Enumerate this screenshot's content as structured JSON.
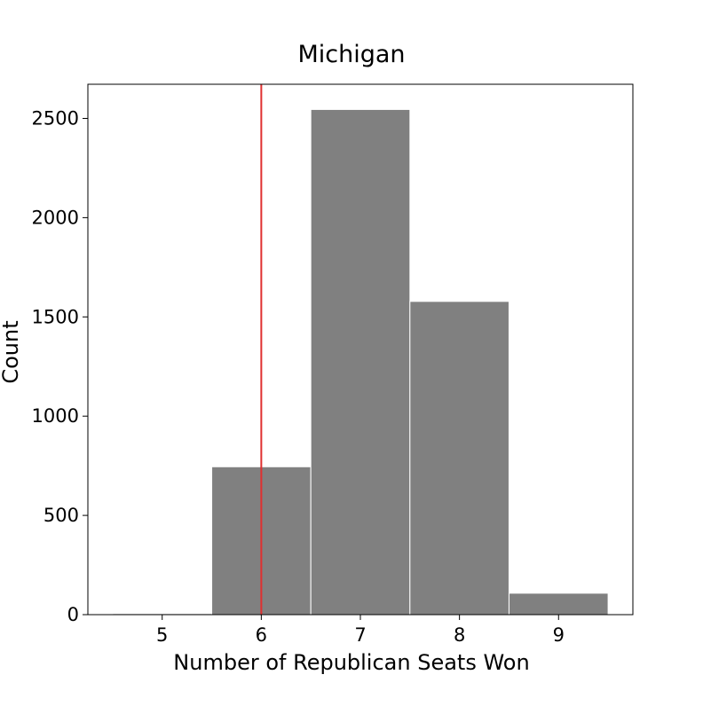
{
  "chart_data": {
    "type": "bar",
    "title": "Michigan",
    "xlabel": "Number of Republican Seats Won",
    "ylabel": "Count",
    "categories": [
      "5",
      "6",
      "7",
      "8",
      "9"
    ],
    "series": [
      {
        "x": [
          5,
          6,
          7,
          8,
          9
        ],
        "values": [
          5,
          745,
          2545,
          1578,
          108
        ]
      }
    ],
    "bar_color": "#808080",
    "bar_edge_color": "#ffffff",
    "reference_line": {
      "x": 6,
      "color": "#e03030"
    },
    "xlim": [
      4.25,
      9.75
    ],
    "ylim": [
      0,
      2672
    ],
    "xticks": [
      5,
      6,
      7,
      8,
      9
    ],
    "yticks": [
      0,
      500,
      1000,
      1500,
      2000,
      2500
    ],
    "grid": false,
    "legend": "none"
  }
}
